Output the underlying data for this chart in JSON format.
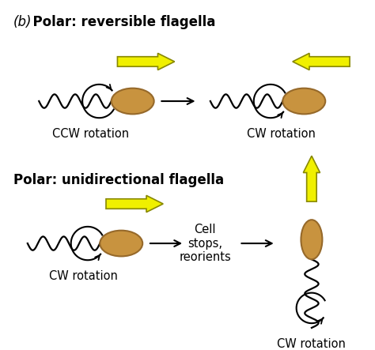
{
  "title_b_italic": "(b)",
  "title_b_bold": "  Polar: reversible flagella",
  "title2": "Polar: unidirectional flagella",
  "label_ccw": "CCW rotation",
  "label_cw1": "CW rotation",
  "label_cw2": "CW rotation",
  "label_cw3": "CW rotation",
  "label_cell_stops": "Cell\nstops,\nreorients",
  "bg_color": "#ffffff",
  "cell_color": "#c8933f",
  "cell_edge_color": "#96692a",
  "arrow_yellow": "#f0f000",
  "arrow_yellow_edge": "#888800",
  "line_color": "#000000",
  "text_color": "#000000",
  "title_fontsize": 12,
  "label_fontsize": 10.5
}
